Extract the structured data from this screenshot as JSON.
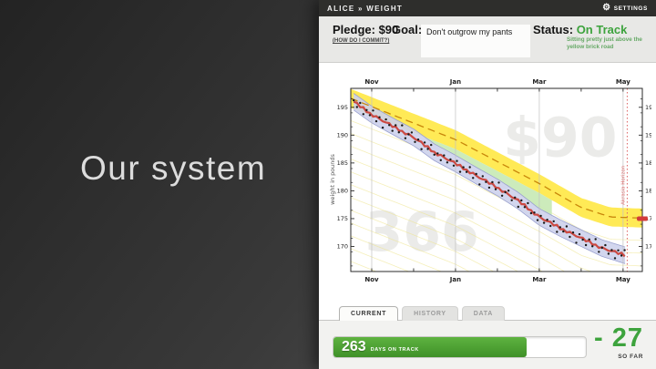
{
  "slide": {
    "title": "Our system"
  },
  "app": {
    "topbar": {
      "title": "ALICE » WEIGHT",
      "settings_label": "SETTINGS",
      "gear_icon": "⚙"
    },
    "header": {
      "pledge_label": "Pledge: $90",
      "commit_link": "(HOW DO I COMMIT?)",
      "goal_label": "Goal:",
      "goal_value": "Don't outgrow my pants",
      "status_label": "Status:",
      "status_value": "On Track",
      "status_note": "Sitting pretty just above the yellow brick road",
      "status_color": "#3da33d"
    },
    "tabs": [
      {
        "label": "CURRENT",
        "active": true
      },
      {
        "label": "HISTORY",
        "active": false
      },
      {
        "label": "DATA",
        "active": false
      }
    ],
    "progress": {
      "value": "263",
      "label": "DAYS ON TRACK",
      "percent": 76.5
    },
    "delta": {
      "value": "- 27",
      "label": "SO FAR"
    }
  },
  "chart_data": {
    "type": "line",
    "title": "",
    "ylabel": "weight in pounds",
    "x_unit": "months since mid-October",
    "x_range": [
      0,
      6.96
    ],
    "ylim": [
      165.5,
      198.4
    ],
    "yticks": [
      170,
      175,
      180,
      185,
      190,
      195
    ],
    "ytick_minor_step": 2.5,
    "xticks": [
      {
        "t": 0.5,
        "label": "Nov"
      },
      {
        "t": 1.5,
        "label": ""
      },
      {
        "t": 2.5,
        "label": "Jan"
      },
      {
        "t": 3.5,
        "label": ""
      },
      {
        "t": 4.5,
        "label": "Mar"
      },
      {
        "t": 5.5,
        "label": ""
      },
      {
        "t": 6.5,
        "label": "May"
      }
    ],
    "gridlines_at": [
      0.5,
      2.5,
      4.5,
      6.5
    ],
    "watermarks": [
      {
        "text": "366",
        "t": 1.7,
        "v": 172.5
      },
      {
        "text": "$90",
        "t": 5.0,
        "v": 189.5
      }
    ],
    "road": {
      "anchors": [
        [
          0,
          196.6
        ],
        [
          2.5,
          189.2
        ],
        [
          4.5,
          181.3
        ],
        [
          5.5,
          177.0
        ],
        [
          6.2,
          175.3
        ],
        [
          6.96,
          175.1
        ]
      ],
      "half_width": 1.7,
      "fill": "#ffe94d",
      "centerline_color": "#c8860b",
      "end_value": 175,
      "end_marker_color": "#d23b3b"
    },
    "guidelines": {
      "count": 12,
      "spacing": 2.3,
      "color": "#efe58c"
    },
    "green_band": {
      "t_end": 4.8,
      "fill": "#c6e9b4"
    },
    "blue_band": {
      "half_width": 1.5,
      "fill": "#cdd2ec",
      "edge": "#99a0cf"
    },
    "moving_average": {
      "anchors": [
        [
          0.07,
          196.0
        ],
        [
          0.5,
          193.7
        ],
        [
          1.0,
          191.6
        ],
        [
          1.5,
          189.6
        ],
        [
          2.0,
          186.9
        ],
        [
          2.5,
          184.9
        ],
        [
          3.0,
          182.7
        ],
        [
          3.5,
          180.6
        ],
        [
          4.0,
          178.2
        ],
        [
          4.5,
          175.3
        ],
        [
          5.0,
          173.3
        ],
        [
          5.5,
          171.5
        ],
        [
          6.0,
          169.7
        ],
        [
          6.3,
          169.0
        ],
        [
          6.55,
          168.4
        ]
      ],
      "color": "#ce453a",
      "thin_line_color": "#8379b5"
    },
    "datapoints": {
      "t_start": 0.07,
      "t_end": 6.55,
      "t_step": 0.077,
      "dot_color": "#1a1a1a",
      "scatter_pattern": [
        0.25,
        -0.55,
        0.6,
        -1.0,
        0.15,
        -0.35,
        0.85,
        -0.75,
        0.3,
        -1.25,
        0.55,
        -0.15,
        -0.85,
        0.45,
        -0.5,
        1.05,
        -0.95,
        0.05,
        0.7,
        -0.65,
        0.2,
        -1.1,
        0.5,
        -0.25,
        0.9,
        -0.45,
        0.1,
        -0.8,
        0.35,
        -0.6
      ]
    },
    "red_jitter": [
      0,
      0.22,
      -0.18,
      0.28,
      -0.22,
      0.08,
      -0.26,
      0.18,
      0.02,
      -0.12
    ],
    "akrasia": {
      "t": 6.6,
      "label": "Akrasia Horizon",
      "color": "#e07070"
    },
    "axis_color": "#2a2a2a"
  }
}
